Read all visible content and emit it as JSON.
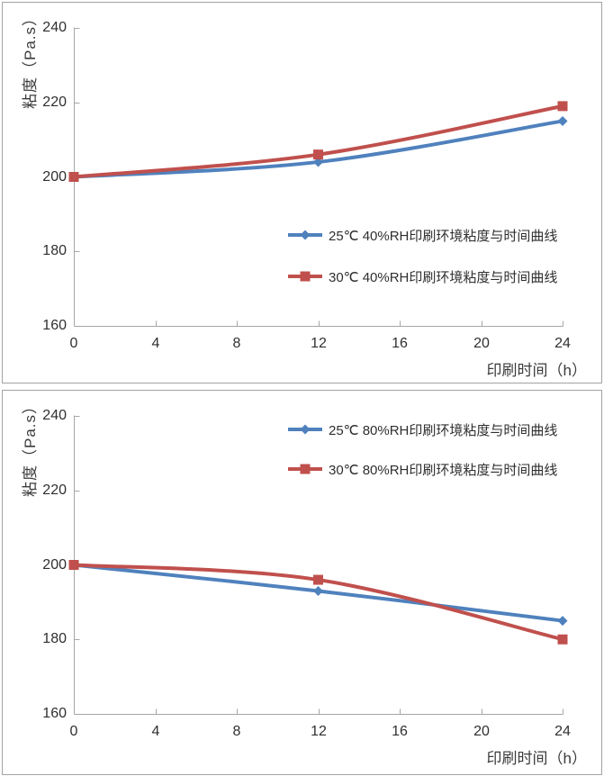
{
  "page": {
    "background": "#ffffff",
    "panel_border_color": "#a3a3a3",
    "axis_color": "#a6a6a6",
    "text_color": "#2f2f2f"
  },
  "chart_data": [
    {
      "type": "line",
      "title": "",
      "xlabel": "印刷时间（h）",
      "ylabel": "粘度（Pa.s）",
      "xlim": [
        0,
        24
      ],
      "ylim": [
        160,
        240
      ],
      "x_ticks": [
        0,
        4,
        8,
        12,
        16,
        20,
        24
      ],
      "y_ticks": [
        160,
        180,
        200,
        220,
        240
      ],
      "grid": false,
      "legend_position": "center-right",
      "x": [
        0,
        12,
        24
      ],
      "series": [
        {
          "name": "25℃ 40%RH印刷环境粘度与时间曲线",
          "color": "#4f81bd",
          "marker": "diamond",
          "values": [
            200,
            204,
            215
          ]
        },
        {
          "name": "30℃ 40%RH印刷环境粘度与时间曲线",
          "color": "#c0504d",
          "marker": "square",
          "values": [
            200,
            206,
            219
          ]
        }
      ]
    },
    {
      "type": "line",
      "title": "",
      "xlabel": "印刷时间（h）",
      "ylabel": "粘度（Pa.s）",
      "xlim": [
        0,
        24
      ],
      "ylim": [
        160,
        240
      ],
      "x_ticks": [
        0,
        4,
        8,
        12,
        16,
        20,
        24
      ],
      "y_ticks": [
        160,
        180,
        200,
        220,
        240
      ],
      "grid": false,
      "legend_position": "top-right",
      "x": [
        0,
        12,
        24
      ],
      "series": [
        {
          "name": "25℃ 80%RH印刷环境粘度与时间曲线",
          "color": "#4f81bd",
          "marker": "diamond",
          "values": [
            200,
            193,
            185
          ]
        },
        {
          "name": "30℃ 80%RH印刷环境粘度与时间曲线",
          "color": "#c0504d",
          "marker": "square",
          "values": [
            200,
            196,
            180
          ]
        }
      ]
    }
  ]
}
